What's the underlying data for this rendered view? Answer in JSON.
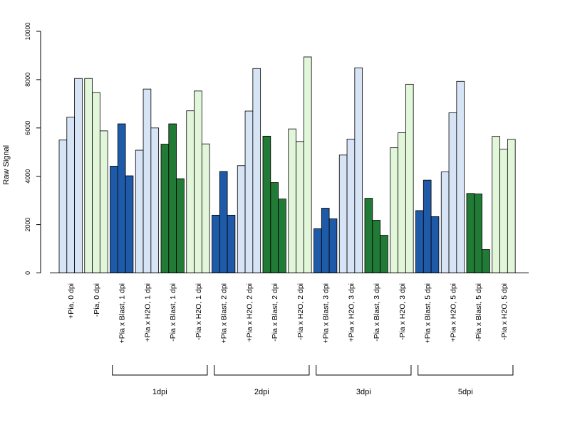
{
  "chart_data": {
    "type": "bar",
    "title": "",
    "xlabel": "",
    "ylabel": "Raw Signal",
    "ylim": [
      0,
      10000
    ],
    "y_ticks": [
      0,
      2000,
      4000,
      6000,
      8000,
      10000
    ],
    "grid": false,
    "legend": "none",
    "colors": {
      "light_blue": "#d6e4f5",
      "light_green": "#e2f6da",
      "dark_blue": "#1f5aa8",
      "dark_green": "#217a35",
      "stroke": "#000000"
    },
    "categories": [
      {
        "label": "+Pia, 0 dpi",
        "values": [
          5500,
          6450,
          8050
        ],
        "color": "#d6e4f5"
      },
      {
        "label": "-Pia, 0 dpi",
        "values": [
          8050,
          7470,
          5880
        ],
        "color": "#e2f6da"
      },
      {
        "label": "+Pia x Blast, 1 dpi",
        "values": [
          4420,
          6170,
          4020
        ],
        "color": "#1f5aa8"
      },
      {
        "label": "+Pia x H2O, 1 dpi",
        "values": [
          5080,
          7610,
          6000
        ],
        "color": "#d6e4f5"
      },
      {
        "label": "-Pia x Blast, 1 dpi",
        "values": [
          5330,
          6170,
          3900
        ],
        "color": "#217a35"
      },
      {
        "label": "-Pia x H2O, 1 dpi",
        "values": [
          6710,
          7530,
          5340
        ],
        "color": "#e2f6da"
      },
      {
        "label": "+Pia x Blast, 2 dpi",
        "values": [
          2390,
          4200,
          2390
        ],
        "color": "#1f5aa8"
      },
      {
        "label": "+Pia x H2O, 2 dpi",
        "values": [
          4440,
          6700,
          8460
        ],
        "color": "#d6e4f5"
      },
      {
        "label": "-Pia x Blast, 2 dpi",
        "values": [
          5660,
          3740,
          3060
        ],
        "color": "#217a35"
      },
      {
        "label": "-Pia x H2O, 2 dpi",
        "values": [
          5960,
          5440,
          8940
        ],
        "color": "#e2f6da"
      },
      {
        "label": "+Pia x Blast, 3 dpi",
        "values": [
          1830,
          2680,
          2240
        ],
        "color": "#1f5aa8"
      },
      {
        "label": "+Pia x H2O, 3 dpi",
        "values": [
          4880,
          5540,
          8490
        ],
        "color": "#d6e4f5"
      },
      {
        "label": "-Pia x Blast, 3 dpi",
        "values": [
          3090,
          2180,
          1560
        ],
        "color": "#217a35"
      },
      {
        "label": "-Pia x H2O, 3 dpi",
        "values": [
          5180,
          5800,
          7810
        ],
        "color": "#e2f6da"
      },
      {
        "label": "+Pia x Blast, 5 dpi",
        "values": [
          2580,
          3840,
          2330
        ],
        "color": "#1f5aa8"
      },
      {
        "label": "+Pia x H2O, 5 dpi",
        "values": [
          4180,
          6630,
          7930
        ],
        "color": "#d6e4f5"
      },
      {
        "label": "-Pia x Blast, 5 dpi",
        "values": [
          3290,
          3270,
          970
        ],
        "color": "#217a35"
      },
      {
        "label": "-Pia x H2O, 5 dpi",
        "values": [
          5650,
          5120,
          5530
        ],
        "color": "#e2f6da"
      }
    ],
    "groups": [
      {
        "label": "1dpi",
        "from": 2,
        "to": 5
      },
      {
        "label": "2dpi",
        "from": 6,
        "to": 9
      },
      {
        "label": "3dpi",
        "from": 10,
        "to": 13
      },
      {
        "label": "5dpi",
        "from": 14,
        "to": 17
      }
    ]
  }
}
